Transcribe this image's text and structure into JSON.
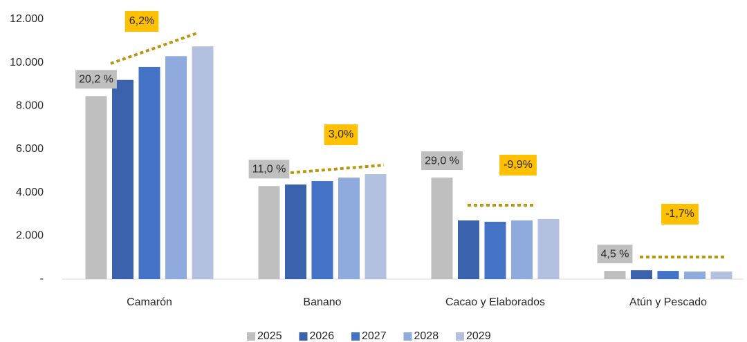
{
  "chart_data": {
    "type": "bar",
    "categories": [
      "Camarón",
      "Banano",
      "Cacao y Elaborados",
      "Atún y Pescado"
    ],
    "series": [
      {
        "name": "2025",
        "color": "#bfbfbf",
        "values": [
          8450,
          4300,
          4690,
          380
        ]
      },
      {
        "name": "2026",
        "color": "#3a62ad",
        "values": [
          9200,
          4370,
          2710,
          410
        ]
      },
      {
        "name": "2027",
        "color": "#4472c4",
        "values": [
          9800,
          4530,
          2650,
          380
        ]
      },
      {
        "name": "2028",
        "color": "#8faadc",
        "values": [
          10300,
          4690,
          2710,
          350
        ]
      },
      {
        "name": "2029",
        "color": "#b4c0e0",
        "values": [
          10750,
          4850,
          2780,
          350
        ]
      }
    ],
    "share_labels": [
      "20,2 %",
      "11,0 %",
      "29,0 %",
      "4,5 %"
    ],
    "growth_labels": [
      "6,2%",
      "3,0%",
      "-9,9%",
      "-1,7%"
    ],
    "ylim": [
      0,
      12000
    ],
    "yticks": [
      {
        "value": 0,
        "label": "-"
      },
      {
        "value": 2000,
        "label": "2.000"
      },
      {
        "value": 4000,
        "label": "4.000"
      },
      {
        "value": 6000,
        "label": "6.000"
      },
      {
        "value": 8000,
        "label": "8.000"
      },
      {
        "value": 10000,
        "label": "10.000"
      },
      {
        "value": 12000,
        "label": "12.000"
      }
    ],
    "grid": false,
    "legend": "bottom"
  }
}
